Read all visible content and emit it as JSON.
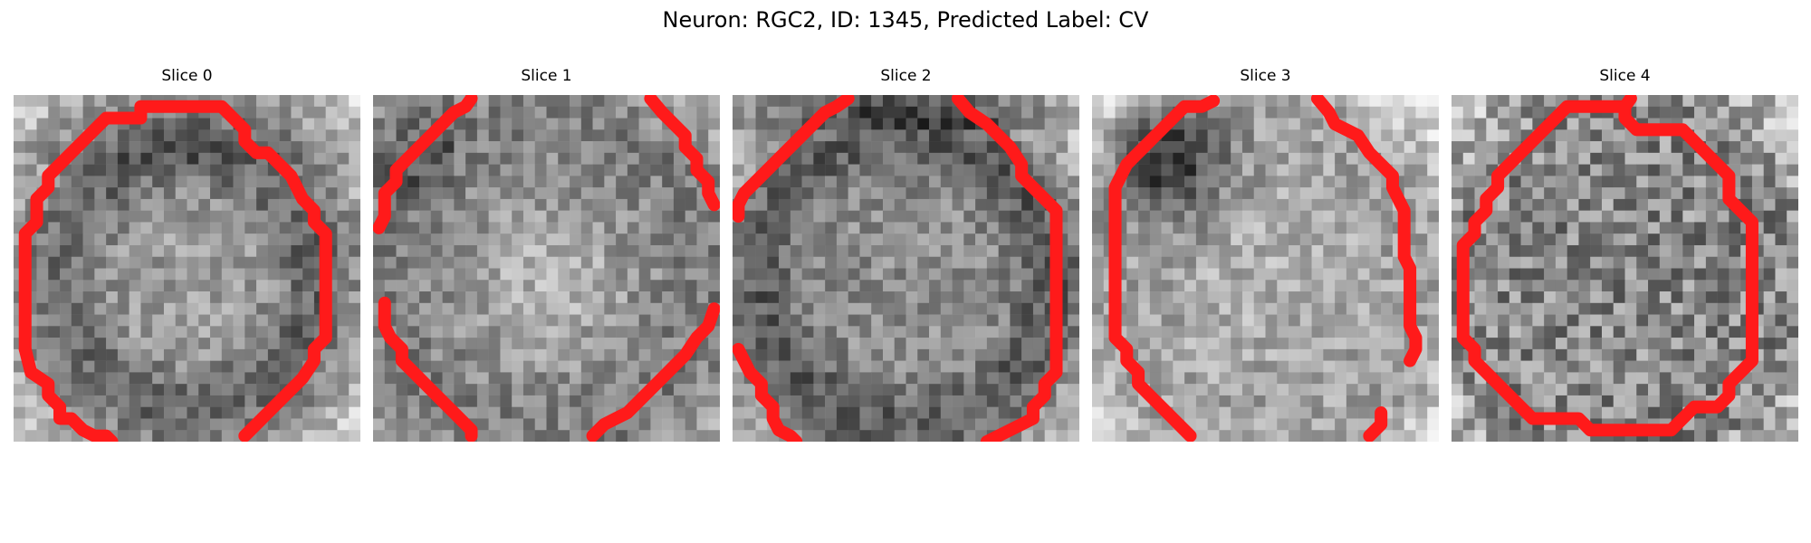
{
  "figure": {
    "title": "Neuron: RGC2, ID: 1345, Predicted Label: CV"
  },
  "colors": {
    "outline": "#ff1a1a",
    "background": "#ffffff"
  },
  "panels": [
    {
      "title": "Slice 0",
      "seed": 11,
      "profile": "ring"
    },
    {
      "title": "Slice 1",
      "seed": 23,
      "profile": "bright-center"
    },
    {
      "title": "Slice 2",
      "seed": 37,
      "profile": "dark-ring"
    },
    {
      "title": "Slice 3",
      "seed": 51,
      "profile": "dark-top-left"
    },
    {
      "title": "Slice 4",
      "seed": 67,
      "profile": "noisy"
    }
  ]
}
